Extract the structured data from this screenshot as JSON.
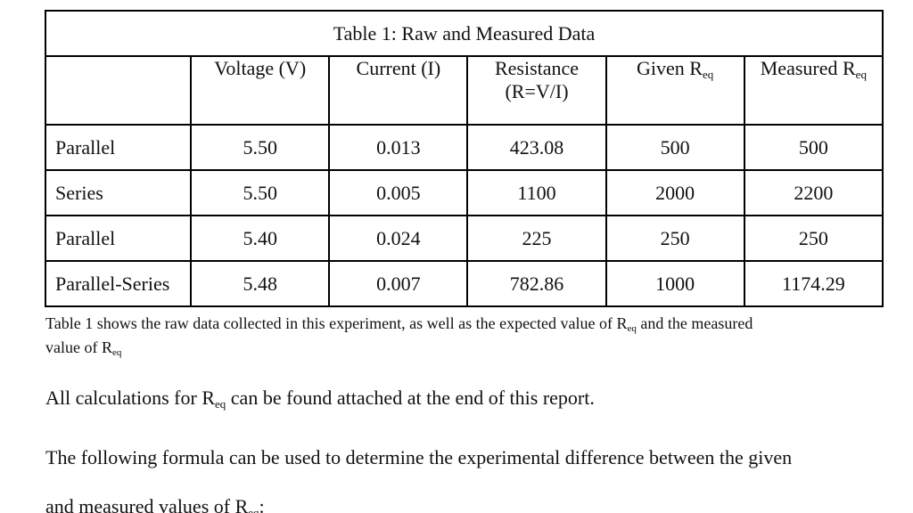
{
  "table": {
    "title": "Table 1: Raw and Measured Data",
    "headers": [
      {
        "main": "",
        "sub": ""
      },
      {
        "main": "Voltage (V)",
        "sub": ""
      },
      {
        "main": "Current (I)",
        "sub": ""
      },
      {
        "main": "Resistance",
        "line2": "(R=V/I)",
        "sub": ""
      },
      {
        "main": "Given R",
        "sub": "eq"
      },
      {
        "main": "Measured R",
        "sub": "eq"
      }
    ],
    "rows": [
      {
        "label": "Parallel",
        "voltage": "5.50",
        "current": "0.013",
        "resistance": "423.08",
        "given": "500",
        "measured": "500"
      },
      {
        "label": "Series",
        "voltage": "5.50",
        "current": "0.005",
        "resistance": "1100",
        "given": "2000",
        "measured": "2200"
      },
      {
        "label": "Parallel",
        "voltage": "5.40",
        "current": "0.024",
        "resistance": "225",
        "given": "250",
        "measured": "250"
      },
      {
        "label": "Parallel-Series",
        "voltage": "5.48",
        "current": "0.007",
        "resistance": "782.86",
        "given": "1000",
        "measured": "1174.29"
      }
    ]
  },
  "caption": {
    "part1": "Table 1 shows the raw data collected in this experiment, as well as the expected value of R",
    "sub1": "eq",
    "part2": " and the measured",
    "part3": "value of R",
    "sub2": "eq"
  },
  "paragraphs": {
    "p1_before": "All calculations for R",
    "p1_sub": "eq",
    "p1_after": " can be found attached at the end of this report.",
    "p2": "The following formula can be used to determine the experimental difference between the given",
    "p3_before": "and measured values of R",
    "p3_sub": "eq",
    "p3_after": ":"
  }
}
